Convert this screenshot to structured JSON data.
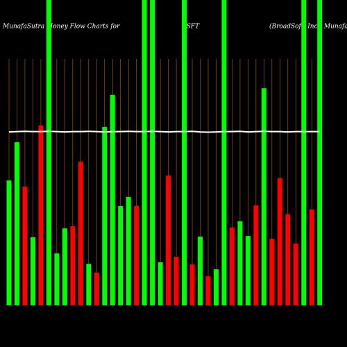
{
  "chart_data": {
    "type": "money-flow",
    "title_left": "MunafaSutra  Money Flow  Charts for",
    "title_center": "BSFT",
    "title_right": "(BroadSoft, Inc.) MunafaSutra.com",
    "ylim": [
      0,
      100
    ],
    "categories": [
      null,
      null,
      null,
      null,
      null,
      null,
      null,
      null,
      null,
      null,
      null,
      null,
      null,
      null,
      null,
      null,
      null,
      null,
      null,
      null,
      null,
      null,
      null,
      null,
      null,
      null,
      null,
      null,
      null,
      null,
      null,
      null,
      null,
      null,
      null,
      null,
      null,
      null,
      null,
      null
    ],
    "series": [
      {
        "type": "bar",
        "values": [
          40.9,
          53.4,
          38.9,
          22.3,
          58.9,
          100,
          17.0,
          25.2,
          25.9,
          47.0,
          13.6,
          10.7,
          58.4,
          68.9,
          32.5,
          35.5,
          32.5,
          100,
          100,
          14.1,
          42.5,
          15.9,
          100,
          13.4,
          22.5,
          9.5,
          11.8,
          100,
          25.5,
          27.5,
          22.7,
          32.7,
          71.1,
          21.8,
          41.6,
          29.8,
          20.2,
          100,
          31.4,
          100
        ],
        "colors": [
          "#00ff00",
          "#00ff00",
          "#ff0000",
          "#00ff00",
          "#ff0000",
          "#00ff00",
          "#00ff00",
          "#00ff00",
          "#ff0000",
          "#ff0000",
          "#00ff00",
          "#ff0000",
          "#00ff00",
          "#00ff00",
          "#00ff00",
          "#00ff00",
          "#ff0000",
          "#00ff00",
          "#00ff00",
          "#00ff00",
          "#ff0000",
          "#ff0000",
          "#00ff00",
          "#ff0000",
          "#00ff00",
          "#ff0000",
          "#00ff00",
          "#00ff00",
          "#ff0000",
          "#00ff00",
          "#00ff00",
          "#ff0000",
          "#00ff00",
          "#ff0000",
          "#ff0000",
          "#ff0000",
          "#ff0000",
          "#00ff00",
          "#ff0000",
          "#00ff00"
        ]
      },
      {
        "type": "line",
        "color": "#ffffff",
        "values": [
          56.8,
          56.9,
          57.0,
          56.9,
          56.9,
          57.0,
          56.9,
          56.8,
          56.9,
          56.9,
          57.0,
          56.9,
          56.8,
          56.9,
          56.9,
          57.0,
          56.9,
          56.9,
          57.0,
          56.9,
          56.8,
          56.9,
          56.9,
          57.0,
          56.8,
          56.7,
          56.8,
          56.9,
          56.9,
          57.0,
          56.8,
          56.9,
          57.0,
          56.9,
          56.9,
          56.8,
          56.9,
          56.9,
          56.9,
          56.9
        ]
      }
    ]
  }
}
